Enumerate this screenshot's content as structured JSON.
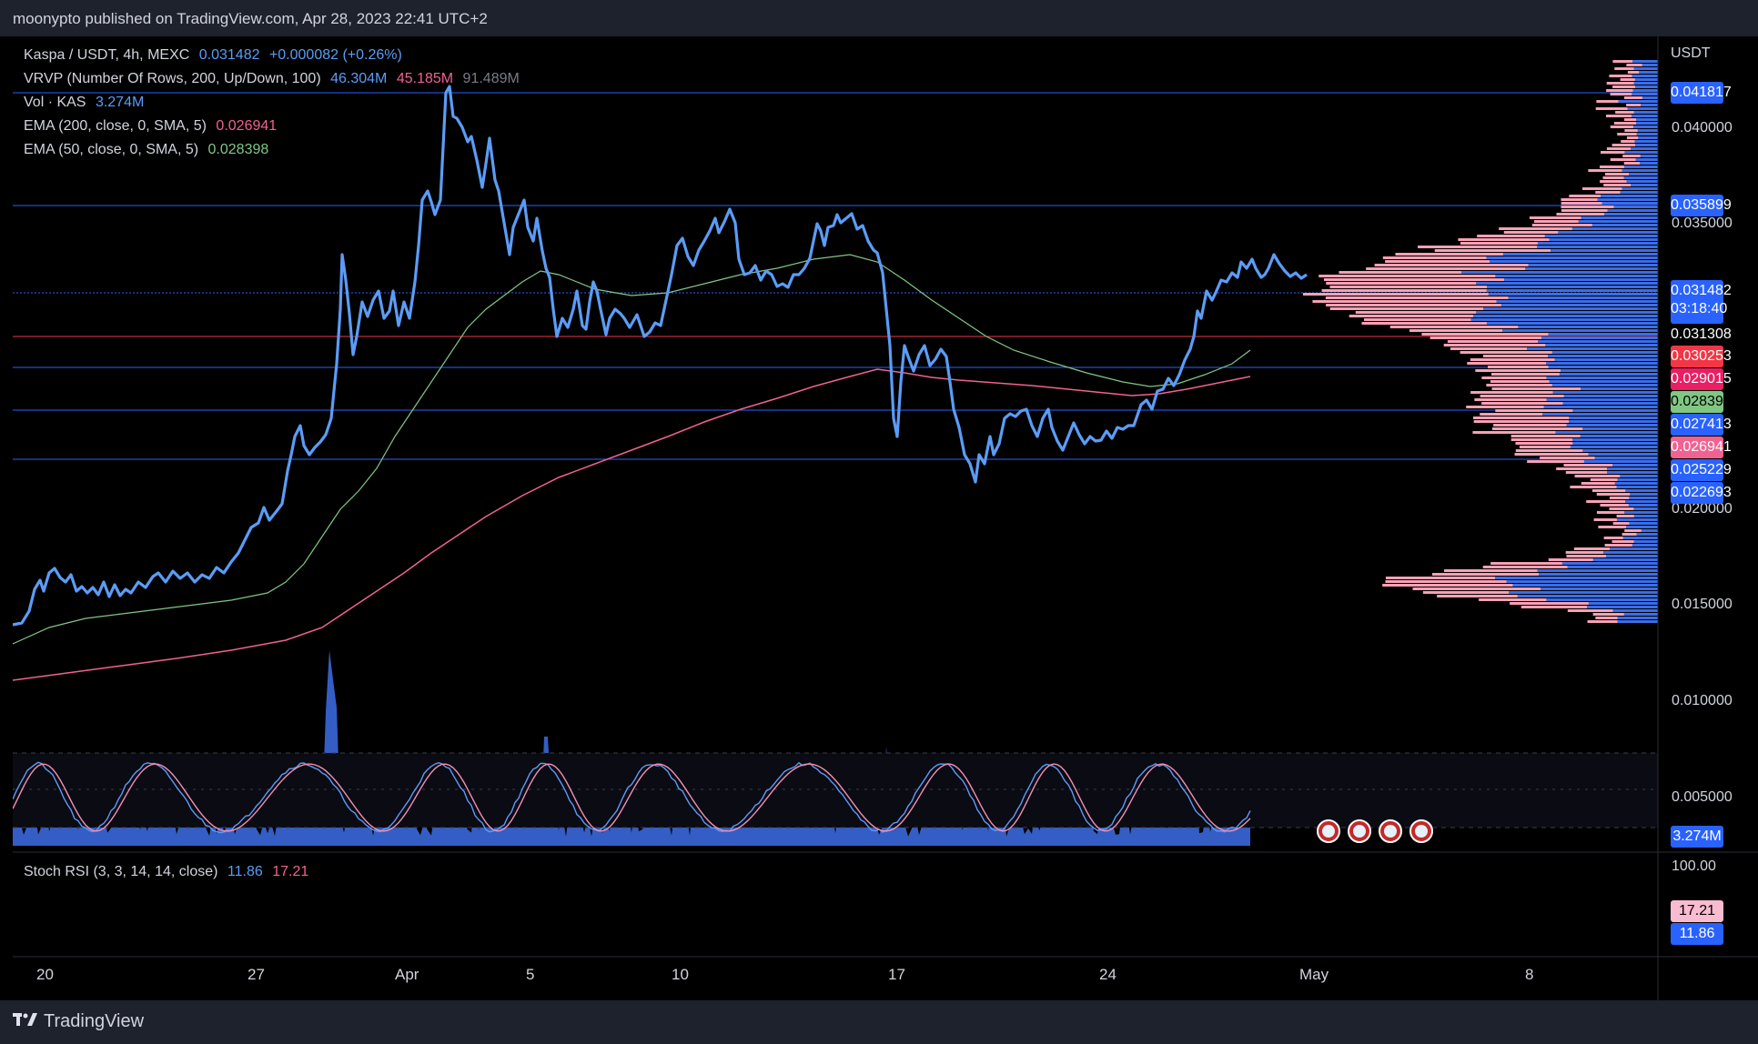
{
  "header": {
    "publish_line": "moonypto published on TradingView.com, Apr 28, 2023 22:41 UTC+2"
  },
  "legend": {
    "symbol": "Kaspa / USDT, 4h, MEXC",
    "price": "0.031482",
    "change": "+0.000082 (+0.26%)",
    "vrvp_label": "VRVP (Number Of Rows, 200, Up/Down, 100)",
    "vrvp_up": "46.304M",
    "vrvp_down": "45.185M",
    "vrvp_total": "91.489M",
    "vol_label": "Vol · KAS",
    "vol_value": "3.274M",
    "ema200_label": "EMA (200, close, 0, SMA, 5)",
    "ema200_value": "0.026941",
    "ema50_label": "EMA (50, close, 0, SMA, 5)",
    "ema50_value": "0.028398",
    "stoch_label": "Stoch RSI (3, 3, 14, 14, close)",
    "stoch_k": "11.86",
    "stoch_d": "17.21"
  },
  "price_axis": {
    "currency": "USDT",
    "ticks": [
      "0.040000",
      "0.035000",
      "0.020000",
      "0.015000",
      "0.010000",
      "0.005000"
    ],
    "stoch_top": "100.00"
  },
  "price_labels": [
    {
      "text": "0.041817",
      "bg": "#2962ff"
    },
    {
      "text": "0.035899",
      "bg": "#2962ff"
    },
    {
      "text": "0.031308",
      "bg": "#000000"
    },
    {
      "text": "0.030253",
      "bg": "#f23645"
    },
    {
      "text": "0.029015",
      "bg": "#e91e63"
    },
    {
      "text": "0.028398",
      "bg": "#81c784"
    },
    {
      "text": "0.027413",
      "bg": "#2962ff"
    },
    {
      "text": "0.026941",
      "bg": "#f06292"
    },
    {
      "text": "0.025229",
      "bg": "#2962ff"
    },
    {
      "text": "0.022693",
      "bg": "#2962ff"
    }
  ],
  "current_price": {
    "text": "0.031482",
    "countdown": "03:18:40"
  },
  "volume_label": "3.274M",
  "stoch_labels": {
    "d": "17.21",
    "k": "11.86"
  },
  "time_axis": [
    "20",
    "27",
    "Apr",
    "5",
    "10",
    "17",
    "24",
    "May",
    "8"
  ],
  "footer": {
    "brand": "TradingView"
  },
  "colors": {
    "price_line": "#5b9cf6",
    "ema200": "#f06292",
    "ema50": "#81c784",
    "level_line": "#2962ff",
    "volume": "#5b9cf6",
    "vrvp_up": "#3d6ee8",
    "vrvp_down": "#f7a1b4"
  }
}
